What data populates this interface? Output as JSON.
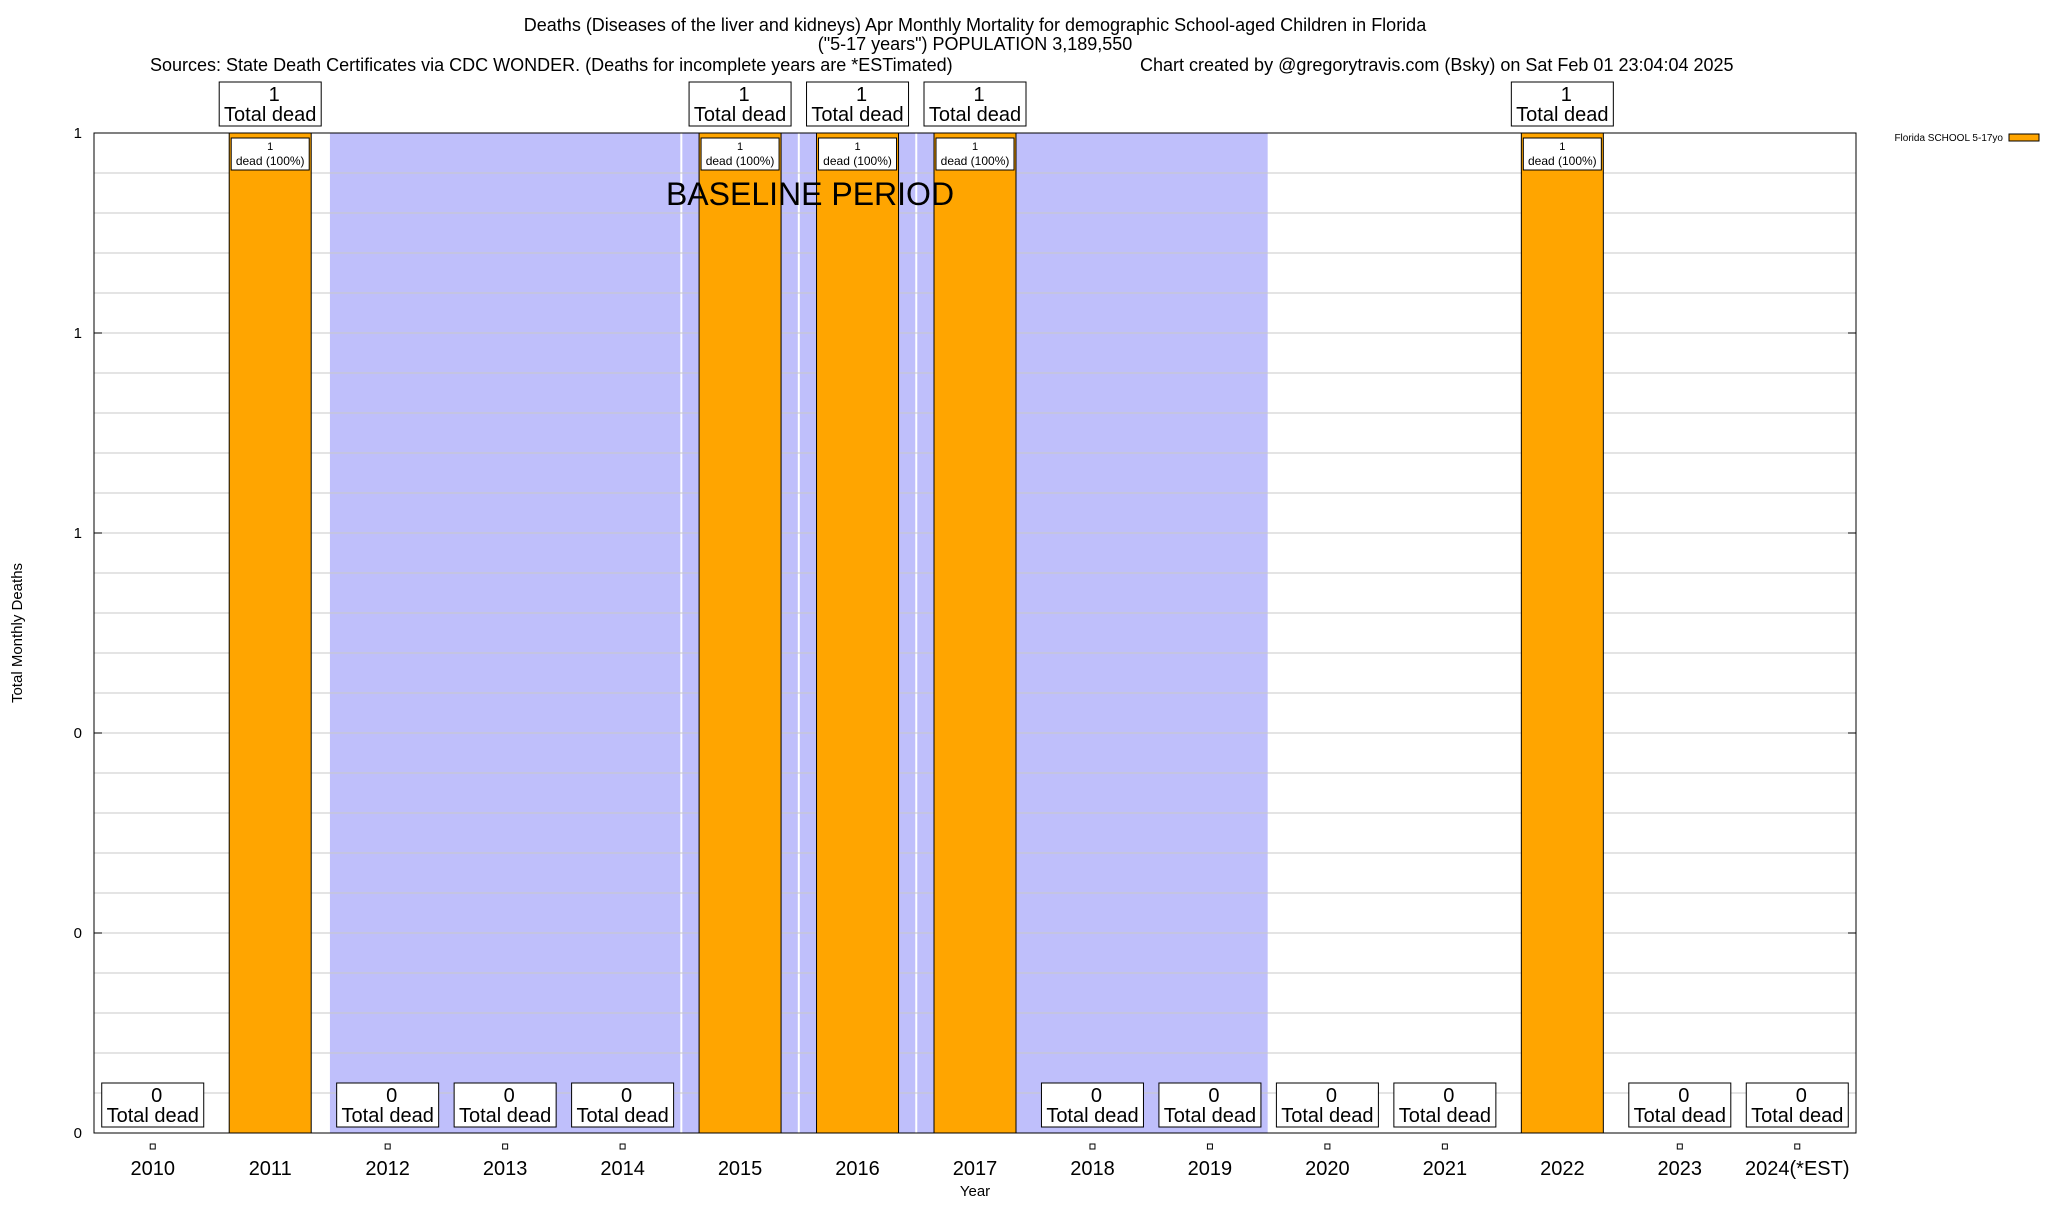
{
  "chart_data": {
    "type": "bar",
    "title_lines": [
      "Deaths (Diseases of the liver and kidneys) Apr Monthly Mortality for demographic School-aged Children in Florida",
      "(\"5-17 years\") POPULATION 3,189,550"
    ],
    "sources_text": "Sources: State Death Certificates via CDC WONDER. (Deaths for incomplete years are *ESTimated)",
    "credit_text": "Chart created by @gregorytravis.com (Bsky) on Sat Feb 01 23:04:04 2025",
    "xlabel": "Year",
    "ylabel": "Total Monthly Deaths",
    "categories": [
      "2010",
      "2011",
      "2012",
      "2013",
      "2014",
      "2015",
      "2016",
      "2017",
      "2018",
      "2019",
      "2020",
      "2021",
      "2022",
      "2023",
      "2024(*EST)"
    ],
    "series": [
      {
        "name": "Florida SCHOOL 5-17yo",
        "color": "#ffa500",
        "values": [
          0,
          1,
          0,
          0,
          0,
          1,
          1,
          1,
          0,
          0,
          0,
          0,
          1,
          0,
          0
        ]
      }
    ],
    "total_labels": [
      {
        "value": "0",
        "text": "Total dead"
      },
      {
        "value": "1",
        "text": "Total dead"
      },
      {
        "value": "0",
        "text": "Total dead"
      },
      {
        "value": "0",
        "text": "Total dead"
      },
      {
        "value": "0",
        "text": "Total dead"
      },
      {
        "value": "1",
        "text": "Total dead"
      },
      {
        "value": "1",
        "text": "Total dead"
      },
      {
        "value": "1",
        "text": "Total dead"
      },
      {
        "value": "0",
        "text": "Total dead"
      },
      {
        "value": "0",
        "text": "Total dead"
      },
      {
        "value": "0",
        "text": "Total dead"
      },
      {
        "value": "0",
        "text": "Total dead"
      },
      {
        "value": "1",
        "text": "Total dead"
      },
      {
        "value": "0",
        "text": "Total dead"
      },
      {
        "value": "0",
        "text": "Total dead"
      }
    ],
    "segment_label_count": "1",
    "segment_label_text": "dead (100%)",
    "ytick_labels": [
      "0",
      "0",
      "0",
      "1",
      "1",
      "1"
    ],
    "ylim": [
      0,
      1
    ],
    "baseline_label": "BASELINE PERIOD",
    "baseline_shading": [
      {
        "from": "2012",
        "to": "2014"
      },
      {
        "from": "2015",
        "to": "2015"
      },
      {
        "from": "2016",
        "to": "2016"
      },
      {
        "from": "2017",
        "to": "2019"
      }
    ],
    "baseline_color": "#bfbffb",
    "grid": true,
    "legend_position": "top-right"
  }
}
